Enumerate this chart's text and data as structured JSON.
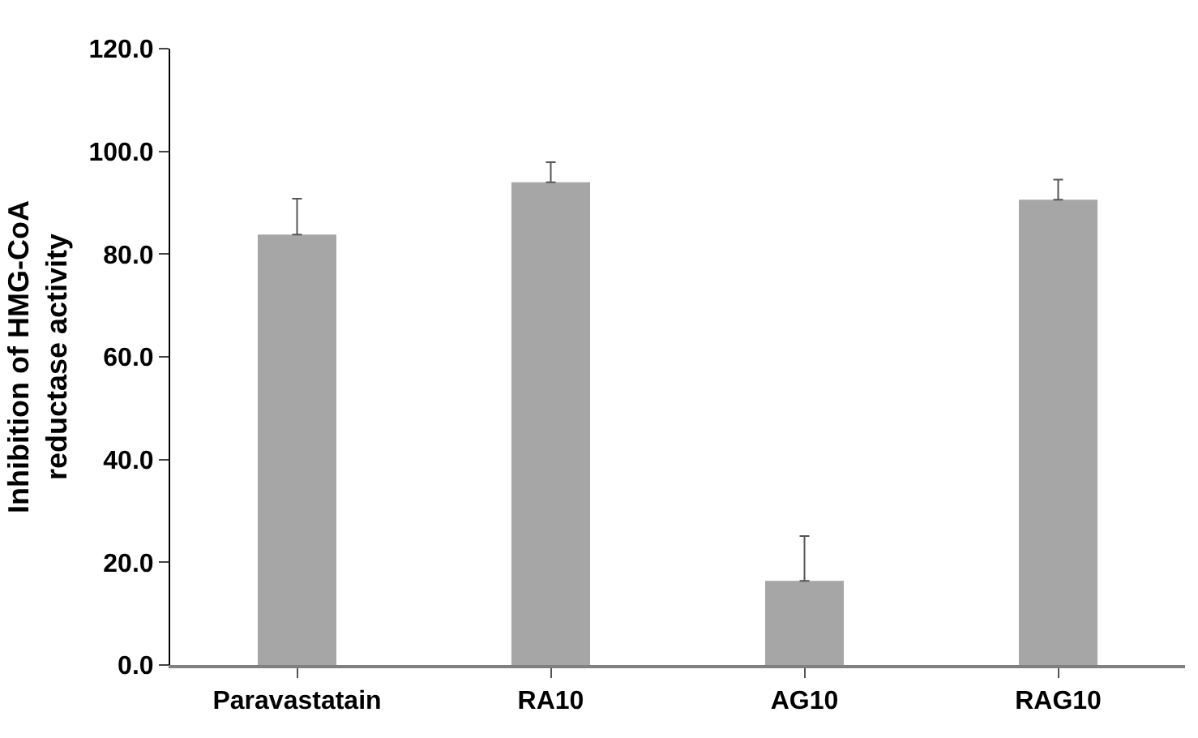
{
  "chart_data": {
    "type": "bar",
    "ylabel": "Inhibition of HMG-CoA\nreductase activity",
    "categories": [
      "Paravastatain",
      "RA10",
      "AG10",
      "RAG10"
    ],
    "values": [
      83.8,
      94.0,
      16.4,
      90.6
    ],
    "errors": [
      [
        83.8,
        90.8
      ],
      [
        94.0,
        97.9
      ],
      [
        16.4,
        25.1
      ],
      [
        90.6,
        94.5
      ]
    ],
    "color": "#a6a6a6",
    "ylim": [
      0,
      120
    ],
    "yticks": [
      {
        "value": 0,
        "label": "0.0"
      },
      {
        "value": 20,
        "label": "20.0"
      },
      {
        "value": 40,
        "label": "40.0"
      },
      {
        "value": 60,
        "label": "60.0"
      },
      {
        "value": 80,
        "label": "80.0"
      },
      {
        "value": 100,
        "label": "100.0"
      },
      {
        "value": 120,
        "label": "120.0"
      }
    ]
  }
}
